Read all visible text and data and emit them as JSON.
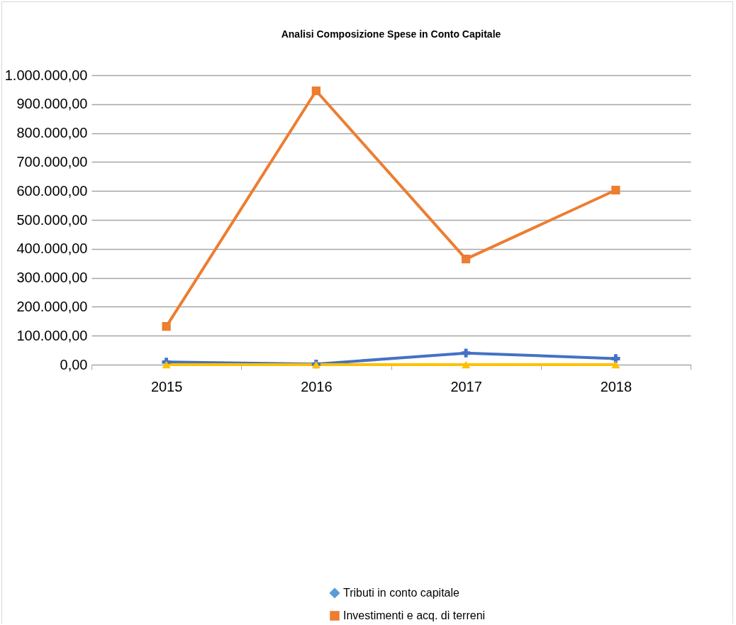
{
  "chart_data": {
    "type": "line",
    "title": "Analisi Composizione Spese in Conto Capitale",
    "categories": [
      "2015",
      "2016",
      "2017",
      "2018"
    ],
    "series": [
      {
        "name": "Tributi in conto capitale",
        "color": "#5b9bd5",
        "marker": "diamond",
        "values": [
          null,
          null,
          null,
          null
        ]
      },
      {
        "name": "Investimenti e acq. di terreni",
        "color": "#ed7d31",
        "marker": "square",
        "values": [
          132000,
          946000,
          365000,
          603000
        ]
      },
      {
        "color": "#4472c4",
        "marker": "cross",
        "values": [
          9000,
          2000,
          40000,
          21000
        ]
      },
      {
        "color": "#ffc000",
        "marker": "triangle",
        "values": [
          0,
          0,
          0,
          0
        ]
      }
    ],
    "ylim": [
      0,
      1000000
    ],
    "yticks": [
      {
        "value": 0,
        "label": "0,00"
      },
      {
        "value": 100000,
        "label": "100.000,00"
      },
      {
        "value": 200000,
        "label": "200.000,00"
      },
      {
        "value": 300000,
        "label": "300.000,00"
      },
      {
        "value": 400000,
        "label": "400.000,00"
      },
      {
        "value": 500000,
        "label": "500.000,00"
      },
      {
        "value": 600000,
        "label": "600.000,00"
      },
      {
        "value": 700000,
        "label": "700.000,00"
      },
      {
        "value": 800000,
        "label": "800.000,00"
      },
      {
        "value": 900000,
        "label": "900.000,00"
      },
      {
        "value": 1000000,
        "label": "1.000.000,00"
      }
    ],
    "grid": "y",
    "legend": "bottom"
  }
}
